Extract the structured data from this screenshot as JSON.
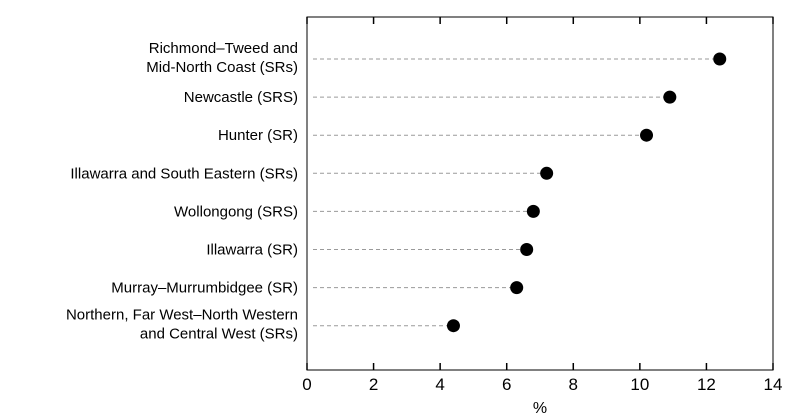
{
  "chart_data": {
    "type": "scatter",
    "title": "",
    "xlabel": "%",
    "ylabel": "",
    "xlim": [
      0,
      14
    ],
    "xticks": [
      0,
      2,
      4,
      6,
      8,
      10,
      12,
      14
    ],
    "xtick_labels": [
      "0",
      "2",
      "4",
      "6",
      "8",
      "10",
      "12",
      "14"
    ],
    "grid": false,
    "legend": "none",
    "marker_color": "#000000",
    "leader_color": "#9a9a9a",
    "categories": [
      [
        "Richmond–Tweed and",
        "Mid-North Coast (SRs)"
      ],
      [
        "Newcastle (SRS)"
      ],
      [
        "Hunter (SR)"
      ],
      [
        "Illawarra and South Eastern (SRs)"
      ],
      [
        "Wollongong (SRS)"
      ],
      [
        "Illawarra (SR)"
      ],
      [
        "Murray–Murrumbidgee (SR)"
      ],
      [
        "Northern, Far West–North Western",
        "and Central West (SRs)"
      ]
    ],
    "values": [
      12.4,
      10.9,
      10.2,
      7.2,
      6.8,
      6.6,
      6.3,
      4.4
    ]
  }
}
